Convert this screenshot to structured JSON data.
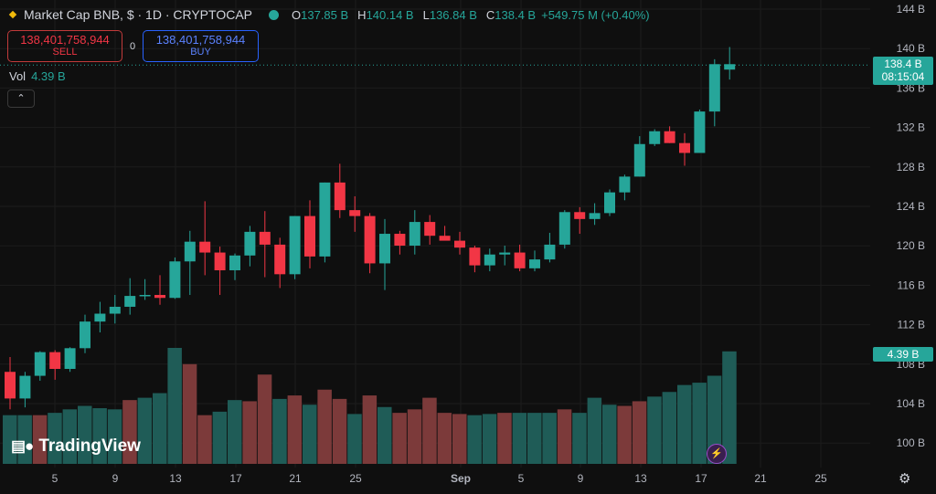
{
  "header": {
    "title": "Market Cap BNB, $ · 1D · CRYPTOCAP",
    "ohlc": [
      {
        "label": "O",
        "value": "137.85 B"
      },
      {
        "label": "H",
        "value": "140.14 B"
      },
      {
        "label": "L",
        "value": "136.84 B"
      },
      {
        "label": "C",
        "value": "138.4 B"
      }
    ],
    "change": "+549.75 M (+0.40%)"
  },
  "trade": {
    "sell_price": "138,401,758,944",
    "sell_label": "SELL",
    "spread": "0",
    "buy_price": "138,401,758,944",
    "buy_label": "BUY"
  },
  "volume": {
    "label": "Vol",
    "value": "4.39 B"
  },
  "collapse_icon": "chevron-up-icon",
  "price_tag": {
    "price": "138.4 B",
    "countdown": "08:15:04"
  },
  "volume_tag": "4.39 B",
  "logo": "TradingView",
  "colors": {
    "up": "#26a69a",
    "down": "#f23645",
    "vol_up": "#1f5c57",
    "vol_down": "#7c3a3a",
    "background": "#0f0f0f"
  },
  "chart_data": {
    "type": "candlestick",
    "y_axis": {
      "ticks": [
        "144 B",
        "140 B",
        "136 B",
        "132 B",
        "128 B",
        "124 B",
        "120 B",
        "116 B",
        "112 B",
        "108 B",
        "104 B",
        "100 B"
      ]
    },
    "x_axis": {
      "ticks": [
        "5",
        "9",
        "13",
        "17",
        "21",
        "25",
        "Sep",
        "5",
        "9",
        "13",
        "17",
        "21",
        "25"
      ]
    },
    "ohlc": [
      [
        107.2,
        108.7,
        103.4,
        104.5
      ],
      [
        104.5,
        107.2,
        103.6,
        106.8
      ],
      [
        106.8,
        109.3,
        106.3,
        109.2
      ],
      [
        109.2,
        109.4,
        106.4,
        107.5
      ],
      [
        107.5,
        109.7,
        107.2,
        109.6
      ],
      [
        109.6,
        113.0,
        109.1,
        112.3
      ],
      [
        112.3,
        114.3,
        111.2,
        113.1
      ],
      [
        113.1,
        115.0,
        112.1,
        113.8
      ],
      [
        113.8,
        116.7,
        113.0,
        114.9
      ],
      [
        114.9,
        116.6,
        114.5,
        115.0
      ],
      [
        115.0,
        117.0,
        114.0,
        114.7
      ],
      [
        114.7,
        118.8,
        114.6,
        118.4
      ],
      [
        118.4,
        121.5,
        115.0,
        120.4
      ],
      [
        120.4,
        124.5,
        117.0,
        119.3
      ],
      [
        119.3,
        119.9,
        115.0,
        117.5
      ],
      [
        117.5,
        119.2,
        116.5,
        119.0
      ],
      [
        119.0,
        122.0,
        117.9,
        121.4
      ],
      [
        121.4,
        123.5,
        116.8,
        120.1
      ],
      [
        120.1,
        120.8,
        115.7,
        117.1
      ],
      [
        117.1,
        123.0,
        116.6,
        123.0
      ],
      [
        123.0,
        124.6,
        117.7,
        118.9
      ],
      [
        118.9,
        126.4,
        118.3,
        126.4
      ],
      [
        126.4,
        128.3,
        122.8,
        123.6
      ],
      [
        123.6,
        125.0,
        121.4,
        123.0
      ],
      [
        123.0,
        123.3,
        117.2,
        118.2
      ],
      [
        118.2,
        122.7,
        115.5,
        121.2
      ],
      [
        121.2,
        121.5,
        119.1,
        120.0
      ],
      [
        120.0,
        123.6,
        119.1,
        122.4
      ],
      [
        122.4,
        123.1,
        120.1,
        121.0
      ],
      [
        121.0,
        122.0,
        120.6,
        120.5
      ],
      [
        120.5,
        121.4,
        119.1,
        119.8
      ],
      [
        119.8,
        120.0,
        117.3,
        118.0
      ],
      [
        118.0,
        119.7,
        117.4,
        119.1
      ],
      [
        119.1,
        120.0,
        118.0,
        119.3
      ],
      [
        119.3,
        120.1,
        117.4,
        117.7
      ],
      [
        117.7,
        119.5,
        117.4,
        118.6
      ],
      [
        118.6,
        121.3,
        118.3,
        120.1
      ],
      [
        120.1,
        123.6,
        119.7,
        123.4
      ],
      [
        123.4,
        123.9,
        121.2,
        122.7
      ],
      [
        122.7,
        124.3,
        122.1,
        123.3
      ],
      [
        123.3,
        125.7,
        123.0,
        125.4
      ],
      [
        125.4,
        127.2,
        124.6,
        127.0
      ],
      [
        127.0,
        131.1,
        127.0,
        130.3
      ],
      [
        130.3,
        131.8,
        130.1,
        131.6
      ],
      [
        131.6,
        132.1,
        130.4,
        130.4
      ],
      [
        130.4,
        131.4,
        128.1,
        129.4
      ],
      [
        129.4,
        133.8,
        129.4,
        133.6
      ],
      [
        133.6,
        138.9,
        132.1,
        138.4
      ],
      [
        137.85,
        140.14,
        136.84,
        138.4
      ]
    ],
    "volume_direction": [
      "up",
      "up",
      "down",
      "up",
      "up",
      "up",
      "up",
      "up",
      "down",
      "up",
      "up",
      "up",
      "down",
      "down",
      "up",
      "up",
      "down",
      "down",
      "up",
      "down",
      "up",
      "down",
      "down",
      "up",
      "down",
      "up",
      "down",
      "down",
      "down",
      "down",
      "down",
      "up",
      "up",
      "down",
      "up",
      "up",
      "up",
      "down",
      "up",
      "up",
      "up",
      "down",
      "down",
      "up",
      "up",
      "up",
      "up",
      "up",
      "up"
    ],
    "volume_relative": [
      0.42,
      0.42,
      0.42,
      0.44,
      0.47,
      0.5,
      0.48,
      0.47,
      0.55,
      0.57,
      0.61,
      1.0,
      0.86,
      0.42,
      0.45,
      0.55,
      0.54,
      0.77,
      0.56,
      0.59,
      0.51,
      0.64,
      0.56,
      0.43,
      0.59,
      0.49,
      0.44,
      0.47,
      0.57,
      0.44,
      0.43,
      0.42,
      0.43,
      0.44,
      0.44,
      0.44,
      0.44,
      0.47,
      0.44,
      0.57,
      0.51,
      0.5,
      0.54,
      0.58,
      0.62,
      0.68,
      0.7,
      0.76,
      0.97
    ]
  }
}
